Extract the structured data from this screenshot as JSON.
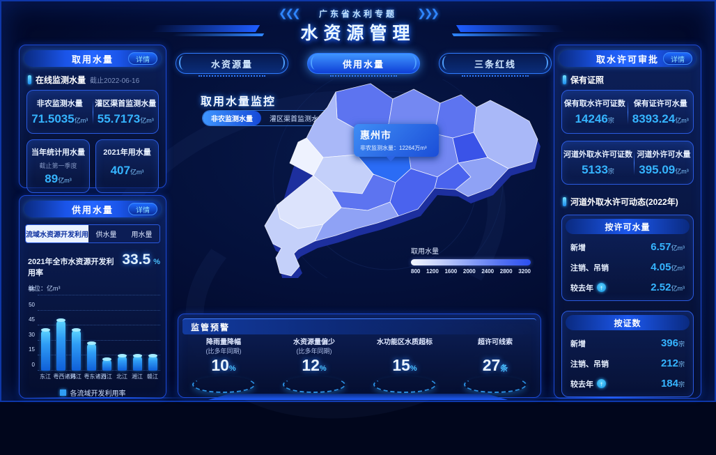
{
  "page": {
    "title_small": "广东省水利专题",
    "title_main": "水资源管理"
  },
  "left": {
    "intake_panel": {
      "title": "取用水量",
      "detail_label": "详情",
      "online_section": {
        "label": "在线监测水量",
        "asof": "截止2022-06-16"
      },
      "monitor_cards": [
        {
          "label": "非农监测水量",
          "value": "71.5035",
          "unit": "亿m³"
        },
        {
          "label": "灌区渠首监测水量",
          "value": "55.7173",
          "unit": "亿m³"
        }
      ],
      "stat_cards": [
        {
          "label": "当年统计用水量",
          "sub": "截止第一季度",
          "value": "89",
          "unit": "亿m³"
        },
        {
          "label": "2021年用水量",
          "sub": "",
          "value": "407",
          "unit": "亿m³"
        }
      ]
    },
    "supply_panel": {
      "title": "供用水量",
      "detail_label": "详情",
      "tabs": [
        {
          "label": "流域水资源开发利用",
          "active": true
        },
        {
          "label": "供水量",
          "active": false
        },
        {
          "label": "用水量",
          "active": false
        }
      ],
      "rate_label": "2021年全市水资源开发利用率",
      "rate_value": "33.5",
      "rate_unit": "%"
    }
  },
  "chart_data": {
    "type": "bar",
    "title": "各流域开发利用率",
    "unit_label": "单位：亿m³",
    "categories": [
      "东江",
      "粤西诸河",
      "韩江",
      "粤东诸河",
      "西江",
      "北江",
      "湘江",
      "赣江"
    ],
    "values": [
      41,
      47,
      41,
      28,
      12,
      15,
      15,
      15
    ],
    "y_tick_labels": [
      "0",
      "15",
      "30",
      "45",
      "50",
      "55"
    ],
    "y_tick_values": [
      0,
      15,
      30,
      45,
      50,
      55
    ],
    "y_axis_note": "ticks evenly spaced as displayed (non-linear scale)",
    "grid": "dotted",
    "legend": [
      "各流域开发利用率"
    ],
    "legend_position": "bottom",
    "bar_color": "#2f9df5"
  },
  "center": {
    "tabs": [
      {
        "label": "水资源量",
        "active": false
      },
      {
        "label": "供用水量",
        "active": true
      },
      {
        "label": "三条红线",
        "active": false
      }
    ],
    "map_title": "取用水量监控",
    "map_toggles": [
      {
        "label": "非农监测水量",
        "active": true
      },
      {
        "label": "灌区渠首监测水量",
        "active": false
      }
    ],
    "tooltip": {
      "city": "惠州市",
      "label": "非农监测水量：",
      "value": "12264万m³"
    },
    "scale": {
      "label": "取用水量",
      "ticks": [
        "800",
        "1200",
        "1600",
        "2000",
        "2400",
        "2800",
        "3200"
      ]
    },
    "warning_panel": {
      "title": "监管预警",
      "items": [
        {
          "label": "降雨量降幅",
          "sub": "(比多年同期)",
          "value": "10",
          "unit": "%"
        },
        {
          "label": "水资源量偏少",
          "sub": "(比多年同期)",
          "value": "12",
          "unit": "%"
        },
        {
          "label": "水功能区水质超标",
          "sub": "",
          "value": "15",
          "unit": "%"
        },
        {
          "label": "超许可线索",
          "sub": "",
          "value": "27",
          "unit": "条"
        }
      ]
    }
  },
  "right": {
    "title": "取水许可审批",
    "detail_label": "详情",
    "license_section": "保有证照",
    "cards": [
      [
        {
          "label": "保有取水许可证数",
          "value": "14246",
          "unit": "宗"
        },
        {
          "label": "保有证许可水量",
          "value": "8393.24",
          "unit": "亿m³"
        }
      ],
      [
        {
          "label": "河道外取水许可证数",
          "value": "5133",
          "unit": "宗"
        },
        {
          "label": "河道外许可水量",
          "value": "395.09",
          "unit": "亿m³"
        }
      ]
    ],
    "dynamic_section": "河道外取水许可动态(2022年)",
    "by_volume": {
      "title": "按许可水量",
      "rows": [
        {
          "label": "新增",
          "value": "6.57",
          "unit": "亿m³"
        },
        {
          "label": "注销、吊销",
          "value": "4.05",
          "unit": "亿m³"
        },
        {
          "label": "较去年",
          "value": "2.52",
          "unit": "亿m³"
        }
      ]
    },
    "by_count": {
      "title": "按证数",
      "rows": [
        {
          "label": "新增",
          "value": "396",
          "unit": "宗"
        },
        {
          "label": "注销、吊销",
          "value": "212",
          "unit": "宗"
        },
        {
          "label": "较去年",
          "value": "184",
          "unit": "宗"
        }
      ]
    }
  },
  "map": {
    "palette": [
      "#eef2fe",
      "#dce3fc",
      "#c4d0fa",
      "#a9b8f8",
      "#8fa2f5",
      "#7488f2",
      "#5d74f0",
      "#4a63ee",
      "#3a53e8",
      "#2b49e0",
      "#2b6cf5"
    ],
    "extrude_color": "#1d2f9e",
    "stroke_color": "#ffffff"
  },
  "colors": {
    "accent_cyan": "#35b4ff",
    "accent_blue": "#1e5cff",
    "panel_border": "#1c4ad6",
    "background": "#04103a"
  }
}
